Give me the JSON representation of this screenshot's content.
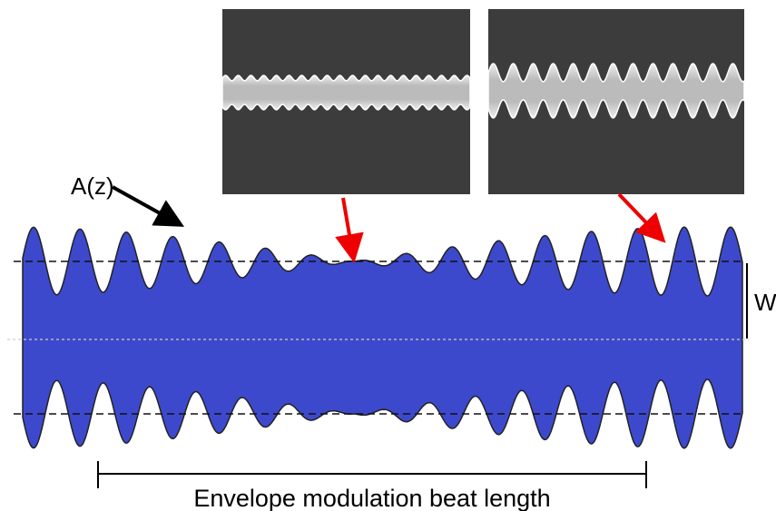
{
  "labels": {
    "amplitude": "A(z)",
    "width": "W",
    "beat_length": "Envelope modulation beat length"
  }
}
